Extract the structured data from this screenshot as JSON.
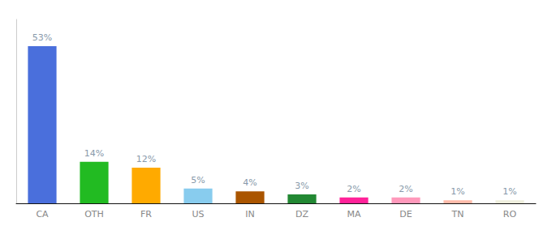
{
  "chart_data": {
    "type": "bar",
    "categories": [
      "CA",
      "OTH",
      "FR",
      "US",
      "IN",
      "DZ",
      "MA",
      "DE",
      "TN",
      "RO"
    ],
    "values": [
      53,
      14,
      12,
      5,
      4,
      3,
      2,
      2,
      1,
      1
    ],
    "value_labels": [
      "53%",
      "14%",
      "12%",
      "5%",
      "4%",
      "3%",
      "2%",
      "2%",
      "1%",
      "1%"
    ],
    "colors": [
      "#4a6fdc",
      "#22bb22",
      "#ffaa00",
      "#88ccee",
      "#aa5500",
      "#228833",
      "#ff2299",
      "#ff99bb",
      "#ffbbaa",
      "#eeeedd"
    ],
    "ylim": [
      0,
      62
    ],
    "data_labels": true,
    "tick_labels": "x",
    "grid": false
  }
}
